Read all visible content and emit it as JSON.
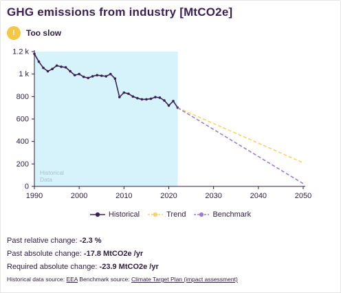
{
  "header": {
    "title": "GHG emissions from industry [MtCO2e]",
    "status_icon": "!",
    "status_label": "Too slow",
    "status_color": "#f6c744"
  },
  "chart_data": {
    "type": "line",
    "xlim": [
      1990,
      2050
    ],
    "ylim": [
      0,
      1200
    ],
    "x_ticks": [
      1990,
      2000,
      2010,
      2020,
      2030,
      2040,
      2050
    ],
    "x_tick_labels": [
      "1990",
      "2000",
      "2010",
      "2020",
      "2030",
      "2040",
      "2050"
    ],
    "y_ticks": [
      0,
      200,
      400,
      600,
      800,
      1000,
      1200
    ],
    "y_tick_labels": [
      "0",
      "200",
      "400",
      "600",
      "800",
      "1 k",
      "1.2 k"
    ],
    "shaded_region": {
      "from": 1990,
      "to": 2022,
      "label_line1": "Historical",
      "label_line2": "Data",
      "color": "#d6f3fb"
    },
    "series": [
      {
        "name": "Historical",
        "color": "#3a1f52",
        "style": "solid-markers",
        "x": [
          1990,
          1991,
          1992,
          1993,
          1994,
          1995,
          1996,
          1997,
          1998,
          1999,
          2000,
          2001,
          2002,
          2003,
          2004,
          2005,
          2006,
          2007,
          2008,
          2009,
          2010,
          2011,
          2012,
          2013,
          2014,
          2015,
          2016,
          2017,
          2018,
          2019,
          2020,
          2021,
          2022
        ],
        "y": [
          1180,
          1110,
          1055,
          1025,
          1045,
          1075,
          1065,
          1060,
          1025,
          990,
          1000,
          975,
          965,
          980,
          990,
          985,
          980,
          1000,
          960,
          795,
          835,
          825,
          800,
          785,
          775,
          775,
          780,
          795,
          790,
          765,
          720,
          760,
          700
        ]
      },
      {
        "name": "Trend",
        "color": "#f6d36b",
        "style": "dashed",
        "x": [
          2022,
          2050
        ],
        "y": [
          700,
          210
        ]
      },
      {
        "name": "Benchmark",
        "color": "#9b7fc4",
        "style": "dashed",
        "x": [
          2022,
          2050
        ],
        "y": [
          700,
          25
        ]
      }
    ]
  },
  "legend": {
    "historical": "Historical",
    "trend": "Trend",
    "benchmark": "Benchmark"
  },
  "stats": {
    "relative_label": "Past relative change:",
    "relative_value": "-2.3 %",
    "absolute_label": "Past absolute change:",
    "absolute_value": "-17.8 MtCO2e /yr",
    "required_label": "Required absolute change:",
    "required_value": "-23.9 MtCO2e /yr"
  },
  "source": {
    "historical_prefix": "Historical data source:",
    "historical_link": "EEA",
    "benchmark_prefix": "Benchmark source:",
    "benchmark_link": "Climate Target Plan (impact assessment)"
  }
}
